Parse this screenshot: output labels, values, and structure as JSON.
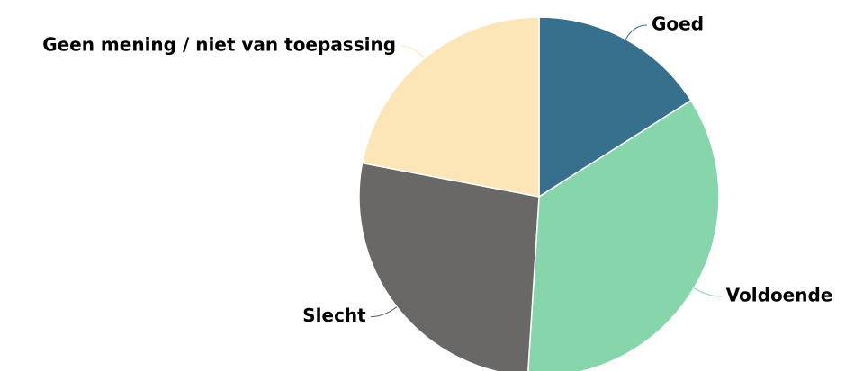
{
  "chart_data": {
    "type": "pie",
    "categories": [
      "Goed",
      "Voldoende",
      "Slecht",
      "Geen mening / niet van toepassing"
    ],
    "values": [
      16,
      35,
      27,
      22
    ],
    "colors": [
      "#36708c",
      "#86d5ab",
      "#696866",
      "#fce5b6"
    ]
  }
}
